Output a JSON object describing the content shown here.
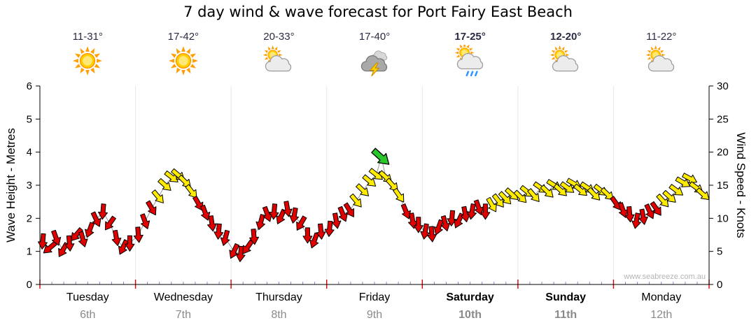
{
  "title": "7 day wind & wave forecast for Port Fairy East Beach",
  "watermark": "www.seabreeze.com.au",
  "days": [
    {
      "name": "Tuesday",
      "date": "6th",
      "temp": "11-31°",
      "icon": "sunny",
      "weekend": false
    },
    {
      "name": "Wednesday",
      "date": "7th",
      "temp": "17-42°",
      "icon": "sunny",
      "weekend": false
    },
    {
      "name": "Thursday",
      "date": "8th",
      "temp": "20-33°",
      "icon": "partly-cloudy",
      "weekend": false
    },
    {
      "name": "Friday",
      "date": "9th",
      "temp": "17-40°",
      "icon": "storm",
      "weekend": false
    },
    {
      "name": "Saturday",
      "date": "10th",
      "temp": "17-25°",
      "icon": "showers",
      "weekend": true
    },
    {
      "name": "Sunday",
      "date": "11th",
      "temp": "12-20°",
      "icon": "partly-cloudy",
      "weekend": true
    },
    {
      "name": "Monday",
      "date": "12th",
      "temp": "11-22°",
      "icon": "partly-cloudy",
      "weekend": false
    }
  ],
  "chart_data": {
    "type": "scatter",
    "title": "7 day wind & wave forecast for Port Fairy East Beach",
    "x_axis": {
      "unit": "days",
      "range": [
        0,
        7
      ],
      "day_labels": [
        "Tuesday 6th",
        "Wednesday 7th",
        "Thursday 8th",
        "Friday 9th",
        "Saturday 10th",
        "Sunday 11th",
        "Monday 12th"
      ]
    },
    "y_axis_left": {
      "label": "Wave Height - Metres",
      "range": [
        0,
        6
      ],
      "ticks": [
        0,
        1,
        2,
        3,
        4,
        5,
        6
      ]
    },
    "y_axis_right": {
      "label": "Wind Speed - Knots",
      "range": [
        0,
        30
      ],
      "ticks": [
        0,
        5,
        10,
        15,
        20,
        25,
        30
      ]
    },
    "grid": "day-boundaries",
    "colors": {
      "r": "#e00000",
      "y": "#ffeb00",
      "g": "#28c828",
      "line": "#999999"
    },
    "point_format": [
      "x_days",
      "wind_knots",
      "arrow_dir_deg",
      "color_key"
    ],
    "points": [
      [
        0.03,
        6.5,
        95,
        "r"
      ],
      [
        0.1,
        5.5,
        140,
        "r"
      ],
      [
        0.17,
        7.0,
        70,
        "r"
      ],
      [
        0.24,
        5.2,
        120,
        "r"
      ],
      [
        0.31,
        6.2,
        85,
        "r"
      ],
      [
        0.38,
        7.5,
        130,
        "r"
      ],
      [
        0.45,
        6.8,
        75,
        "r"
      ],
      [
        0.52,
        8.2,
        110,
        "r"
      ],
      [
        0.59,
        9.8,
        65,
        "r"
      ],
      [
        0.66,
        11.0,
        95,
        "r"
      ],
      [
        0.73,
        9.2,
        125,
        "r"
      ],
      [
        0.8,
        7.0,
        80,
        "r"
      ],
      [
        0.87,
        5.6,
        115,
        "r"
      ],
      [
        0.94,
        6.2,
        90,
        "r"
      ],
      [
        1.03,
        7.5,
        85,
        "r"
      ],
      [
        1.1,
        9.5,
        70,
        "r"
      ],
      [
        1.17,
        11.5,
        60,
        "r"
      ],
      [
        1.24,
        13.2,
        50,
        "y"
      ],
      [
        1.31,
        15.0,
        42,
        "y"
      ],
      [
        1.38,
        16.2,
        38,
        "y"
      ],
      [
        1.45,
        16.5,
        40,
        "y"
      ],
      [
        1.52,
        15.5,
        45,
        "y"
      ],
      [
        1.59,
        14.0,
        52,
        "y"
      ],
      [
        1.66,
        12.2,
        60,
        "r"
      ],
      [
        1.73,
        10.8,
        70,
        "r"
      ],
      [
        1.8,
        9.2,
        82,
        "r"
      ],
      [
        1.87,
        8.0,
        95,
        "r"
      ],
      [
        1.94,
        7.0,
        105,
        "r"
      ],
      [
        2.03,
        5.0,
        115,
        "r"
      ],
      [
        2.1,
        4.6,
        95,
        "r"
      ],
      [
        2.17,
        5.6,
        125,
        "r"
      ],
      [
        2.24,
        7.2,
        85,
        "r"
      ],
      [
        2.31,
        9.4,
        105,
        "r"
      ],
      [
        2.38,
        10.6,
        70,
        "r"
      ],
      [
        2.45,
        11.0,
        95,
        "r"
      ],
      [
        2.52,
        10.2,
        115,
        "r"
      ],
      [
        2.59,
        11.4,
        80,
        "r"
      ],
      [
        2.66,
        10.4,
        100,
        "r"
      ],
      [
        2.73,
        9.2,
        120,
        "r"
      ],
      [
        2.8,
        7.4,
        90,
        "r"
      ],
      [
        2.87,
        6.6,
        110,
        "r"
      ],
      [
        2.94,
        8.0,
        85,
        "r"
      ],
      [
        3.03,
        8.4,
        95,
        "r"
      ],
      [
        3.1,
        9.6,
        80,
        "r"
      ],
      [
        3.17,
        10.6,
        68,
        "r"
      ],
      [
        3.24,
        11.2,
        58,
        "r"
      ],
      [
        3.31,
        12.6,
        50,
        "y"
      ],
      [
        3.38,
        14.2,
        44,
        "y"
      ],
      [
        3.45,
        15.6,
        40,
        "y"
      ],
      [
        3.52,
        16.6,
        38,
        "y"
      ],
      [
        3.57,
        19.2,
        42,
        "g"
      ],
      [
        3.62,
        16.2,
        42,
        "y"
      ],
      [
        3.69,
        15.0,
        48,
        "y"
      ],
      [
        3.76,
        13.4,
        55,
        "y"
      ],
      [
        3.83,
        11.0,
        68,
        "r"
      ],
      [
        3.9,
        9.6,
        80,
        "r"
      ],
      [
        3.96,
        9.0,
        90,
        "r"
      ],
      [
        4.03,
        8.0,
        100,
        "r"
      ],
      [
        4.1,
        7.6,
        85,
        "r"
      ],
      [
        4.17,
        8.6,
        110,
        "r"
      ],
      [
        4.24,
        9.2,
        75,
        "r"
      ],
      [
        4.31,
        10.0,
        95,
        "r"
      ],
      [
        4.38,
        9.6,
        115,
        "r"
      ],
      [
        4.45,
        10.6,
        80,
        "r"
      ],
      [
        4.52,
        11.0,
        100,
        "r"
      ],
      [
        4.59,
        11.6,
        70,
        "r"
      ],
      [
        4.66,
        11.0,
        90,
        "r"
      ],
      [
        4.73,
        12.0,
        60,
        "y"
      ],
      [
        4.8,
        12.6,
        52,
        "y"
      ],
      [
        4.87,
        13.0,
        46,
        "y"
      ],
      [
        4.94,
        13.6,
        42,
        "y"
      ],
      [
        5.03,
        13.2,
        45,
        "y"
      ],
      [
        5.1,
        14.0,
        38,
        "y"
      ],
      [
        5.17,
        13.4,
        50,
        "y"
      ],
      [
        5.24,
        14.6,
        35,
        "y"
      ],
      [
        5.31,
        14.0,
        44,
        "y"
      ],
      [
        5.38,
        15.0,
        32,
        "y"
      ],
      [
        5.45,
        14.2,
        42,
        "y"
      ],
      [
        5.52,
        14.6,
        36,
        "y"
      ],
      [
        5.59,
        15.2,
        30,
        "y"
      ],
      [
        5.66,
        14.2,
        40,
        "y"
      ],
      [
        5.73,
        14.6,
        34,
        "y"
      ],
      [
        5.8,
        13.6,
        46,
        "y"
      ],
      [
        5.87,
        14.2,
        38,
        "y"
      ],
      [
        5.94,
        13.6,
        44,
        "y"
      ],
      [
        6.03,
        12.2,
        55,
        "r"
      ],
      [
        6.1,
        11.2,
        70,
        "r"
      ],
      [
        6.17,
        10.6,
        85,
        "r"
      ],
      [
        6.24,
        9.6,
        100,
        "r"
      ],
      [
        6.31,
        10.2,
        80,
        "r"
      ],
      [
        6.38,
        11.0,
        65,
        "r"
      ],
      [
        6.45,
        11.4,
        55,
        "r"
      ],
      [
        6.52,
        12.6,
        48,
        "y"
      ],
      [
        6.59,
        13.2,
        42,
        "y"
      ],
      [
        6.66,
        14.2,
        36,
        "y"
      ],
      [
        6.73,
        15.4,
        30,
        "y"
      ],
      [
        6.8,
        16.0,
        28,
        "y"
      ],
      [
        6.87,
        14.6,
        36,
        "y"
      ],
      [
        6.94,
        13.6,
        42,
        "y"
      ]
    ]
  }
}
